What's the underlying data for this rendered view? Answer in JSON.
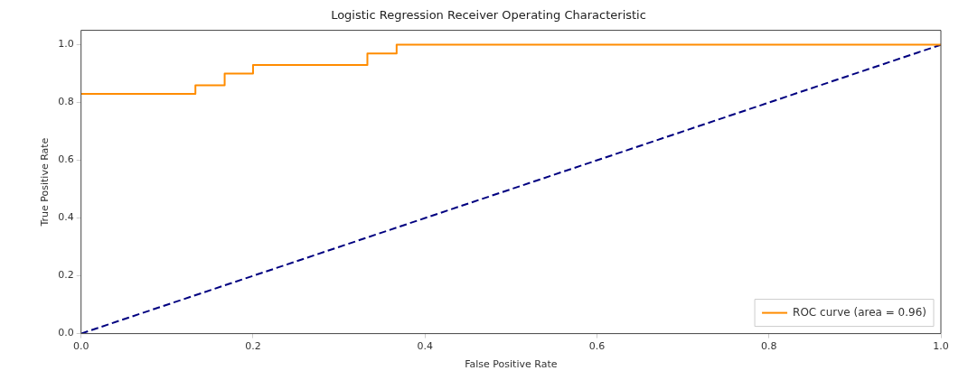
{
  "chart_data": {
    "type": "line",
    "title": "Logistic Regression Receiver Operating Characteristic",
    "xlabel": "False Positive Rate",
    "ylabel": "True Positive Rate",
    "series": [
      {
        "type": "step",
        "name": "ROC curve (area = 0.96)",
        "color": "#ff8c00",
        "x": [
          0,
          0.133,
          0.167,
          0.2,
          0.333,
          0.367,
          1
        ],
        "values": [
          0.83,
          0.86,
          0.9,
          0.93,
          0.97,
          1,
          1
        ]
      },
      {
        "type": "line",
        "color": "#000080",
        "line_style": "dashed",
        "x": [
          0,
          1
        ],
        "values": [
          0,
          1
        ]
      }
    ],
    "xlim": [
      0,
      1
    ],
    "ylim": [
      0,
      1.05
    ],
    "xticks": [
      {
        "value": 0,
        "label": "0.0"
      },
      {
        "value": 0.2,
        "label": "0.2"
      },
      {
        "value": 0.4,
        "label": "0.4"
      },
      {
        "value": 0.6,
        "label": "0.6"
      },
      {
        "value": 0.8,
        "label": "0.8"
      },
      {
        "value": 1,
        "label": "1.0"
      }
    ],
    "yticks": [
      {
        "value": 0,
        "label": "0.0"
      },
      {
        "value": 0.2,
        "label": "0.2"
      },
      {
        "value": 0.4,
        "label": "0.4"
      },
      {
        "value": 0.6,
        "label": "0.6"
      },
      {
        "value": 0.8,
        "label": "0.8"
      },
      {
        "value": 1,
        "label": "1.0"
      }
    ],
    "grid": false,
    "legend": "bottom right",
    "marker": "none"
  }
}
